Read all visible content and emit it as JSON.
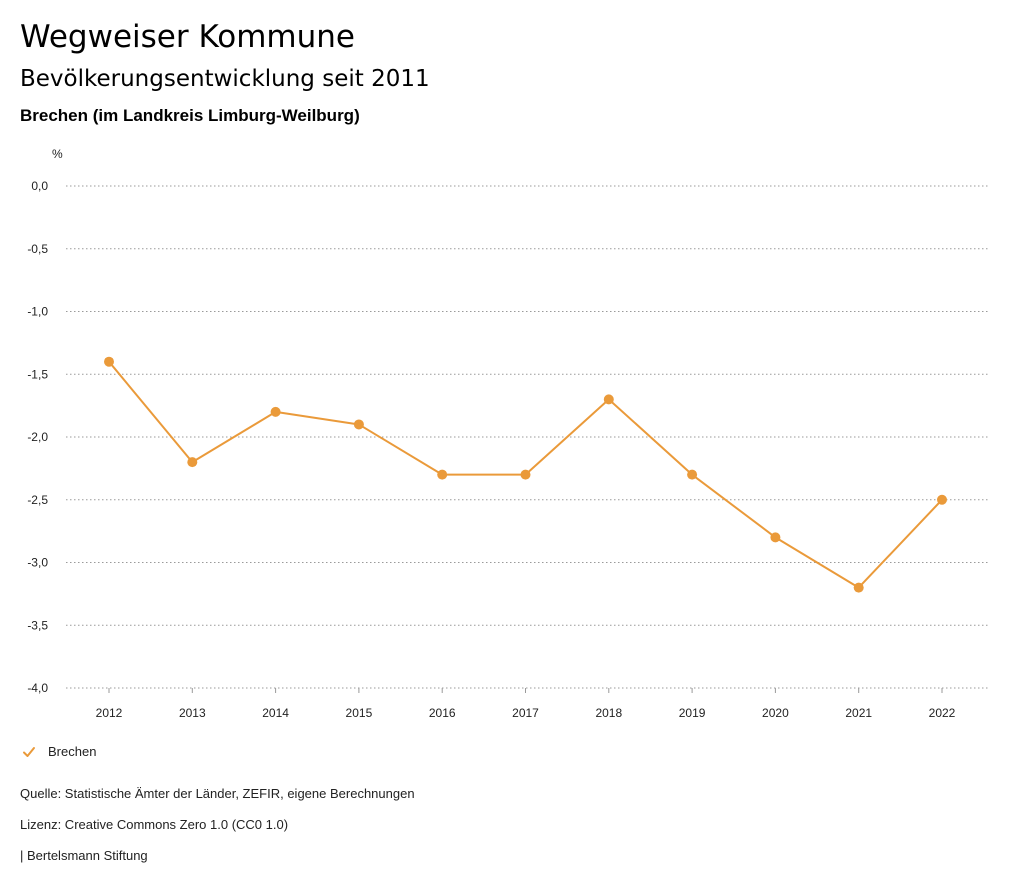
{
  "header": {
    "title": "Wegweiser Kommune",
    "subtitle": "Bevölkerungsentwicklung seit 2011",
    "region": "Brechen (im Landkreis Limburg-Weilburg)"
  },
  "chart_data": {
    "type": "line",
    "unit": "%",
    "categories": [
      "2012",
      "2013",
      "2014",
      "2015",
      "2016",
      "2017",
      "2018",
      "2019",
      "2020",
      "2021",
      "2022"
    ],
    "series": [
      {
        "name": "Brechen",
        "values": [
          -1.4,
          -2.2,
          -1.8,
          -1.9,
          -2.3,
          -2.3,
          -1.7,
          -2.3,
          -2.8,
          -3.2,
          -2.5
        ]
      }
    ],
    "ylim": [
      -4.0,
      0.0
    ],
    "yticks": [
      0.0,
      -0.5,
      -1.0,
      -1.5,
      -2.0,
      -2.5,
      -3.0,
      -3.5,
      -4.0
    ],
    "ytick_labels": [
      "0,0",
      "-0,5",
      "-1,0",
      "-1,5",
      "-2,0",
      "-2,5",
      "-3,0",
      "-3,5",
      "-4,0"
    ],
    "grid": true,
    "legend_position": "bottom-left",
    "color": "#ea9a3a"
  },
  "footer": {
    "source": "Quelle: Statistische Ämter der Länder, ZEFIR, eigene Berechnungen",
    "license": "Lizenz: Creative Commons Zero 1.0 (CC0 1.0)",
    "publisher": "| Bertelsmann Stiftung"
  }
}
